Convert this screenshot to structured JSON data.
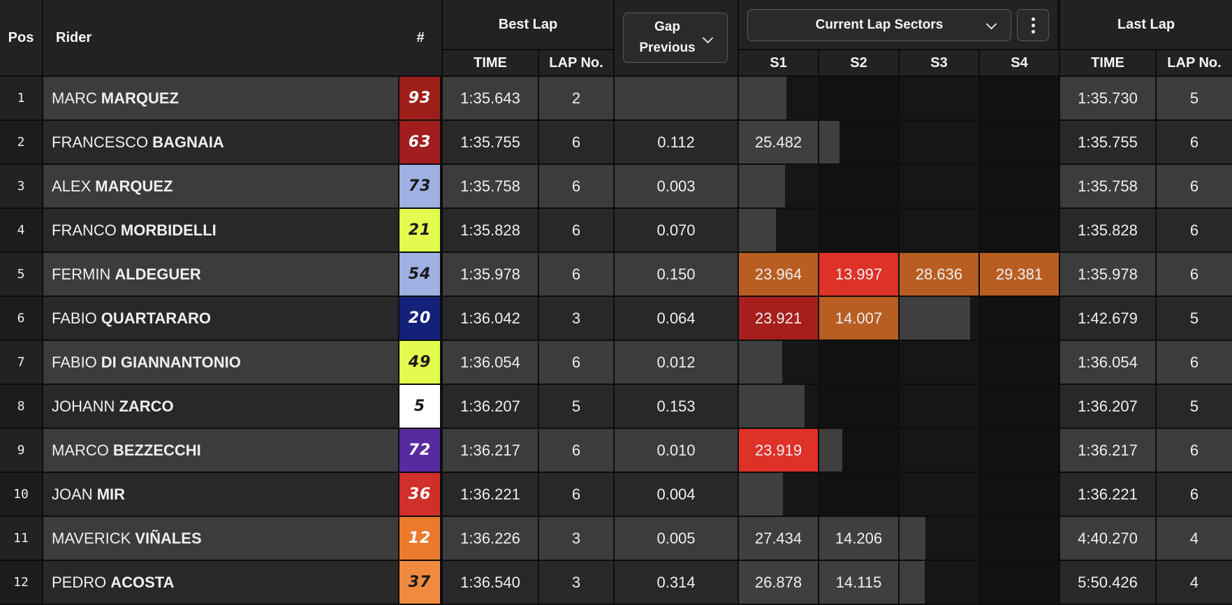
{
  "headers": {
    "pos": "Pos",
    "rider": "Rider",
    "number": "#",
    "best_lap": "Best Lap",
    "time": "TIME",
    "lap_no": "LAP No.",
    "gap_line1": "Gap",
    "gap_line2": "Previous",
    "sectors_select": "Current Lap Sectors",
    "s1": "S1",
    "s2": "S2",
    "s3": "S3",
    "s4": "S4",
    "last_lap": "Last Lap"
  },
  "colors": {
    "sector_orange": "#b85e22",
    "sector_red": "#de3127",
    "sector_darkred": "#a71f1c"
  },
  "rows": [
    {
      "pos": "1",
      "first": "MARC",
      "last": "MARQUEZ",
      "number": "93",
      "num_bg": "#9e1f1a",
      "num_fg": "#ffffff",
      "best_time": "1:35.643",
      "best_lap_no": "2",
      "gap": "",
      "sectors": [
        {
          "value": "",
          "color": "",
          "progress": 0.6
        },
        {
          "value": "",
          "color": "",
          "progress": 0
        },
        {
          "value": "",
          "color": "",
          "progress": 0
        },
        {
          "value": "",
          "color": "",
          "progress": 0
        }
      ],
      "last_time": "1:35.730",
      "last_lap_no": "5"
    },
    {
      "pos": "2",
      "first": "FRANCESCO",
      "last": "BAGNAIA",
      "number": "63",
      "num_bg": "#a11d1d",
      "num_fg": "#ffffff",
      "best_time": "1:35.755",
      "best_lap_no": "6",
      "gap": "0.112",
      "sectors": [
        {
          "value": "25.482",
          "color": "",
          "progress": 1
        },
        {
          "value": "",
          "color": "",
          "progress": 0.26
        },
        {
          "value": "",
          "color": "",
          "progress": 0
        },
        {
          "value": "",
          "color": "",
          "progress": 0
        }
      ],
      "last_time": "1:35.755",
      "last_lap_no": "6"
    },
    {
      "pos": "3",
      "first": "ALEX",
      "last": "MARQUEZ",
      "number": "73",
      "num_bg": "#9fb0e3",
      "num_fg": "#1a1a1a",
      "best_time": "1:35.758",
      "best_lap_no": "6",
      "gap": "0.003",
      "sectors": [
        {
          "value": "",
          "color": "",
          "progress": 0.58
        },
        {
          "value": "",
          "color": "",
          "progress": 0
        },
        {
          "value": "",
          "color": "",
          "progress": 0
        },
        {
          "value": "",
          "color": "",
          "progress": 0
        }
      ],
      "last_time": "1:35.758",
      "last_lap_no": "6"
    },
    {
      "pos": "4",
      "first": "FRANCO",
      "last": "MORBIDELLI",
      "number": "21",
      "num_bg": "#e3fa4f",
      "num_fg": "#1a1a1a",
      "best_time": "1:35.828",
      "best_lap_no": "6",
      "gap": "0.070",
      "sectors": [
        {
          "value": "",
          "color": "",
          "progress": 0.47
        },
        {
          "value": "",
          "color": "",
          "progress": 0
        },
        {
          "value": "",
          "color": "",
          "progress": 0
        },
        {
          "value": "",
          "color": "",
          "progress": 0
        }
      ],
      "last_time": "1:35.828",
      "last_lap_no": "6"
    },
    {
      "pos": "5",
      "first": "FERMIN",
      "last": "ALDEGUER",
      "number": "54",
      "num_bg": "#9fb0e3",
      "num_fg": "#1a1a1a",
      "best_time": "1:35.978",
      "best_lap_no": "6",
      "gap": "0.150",
      "sectors": [
        {
          "value": "23.964",
          "color": "#b85e22",
          "progress": 1
        },
        {
          "value": "13.997",
          "color": "#de3127",
          "progress": 1
        },
        {
          "value": "28.636",
          "color": "#b85e22",
          "progress": 1
        },
        {
          "value": "29.381",
          "color": "#b85e22",
          "progress": 1
        }
      ],
      "last_time": "1:35.978",
      "last_lap_no": "6"
    },
    {
      "pos": "6",
      "first": "FABIO",
      "last": "QUARTARARO",
      "number": "20",
      "num_bg": "#14217a",
      "num_fg": "#ffffff",
      "best_time": "1:36.042",
      "best_lap_no": "3",
      "gap": "0.064",
      "sectors": [
        {
          "value": "23.921",
          "color": "#a71f1c",
          "progress": 1
        },
        {
          "value": "14.007",
          "color": "#b85e22",
          "progress": 1
        },
        {
          "value": "",
          "color": "",
          "progress": 0.89
        },
        {
          "value": "",
          "color": "",
          "progress": 0
        }
      ],
      "last_time": "1:42.679",
      "last_lap_no": "5"
    },
    {
      "pos": "7",
      "first": "FABIO",
      "last": "DI GIANNANTONIO",
      "number": "49",
      "num_bg": "#e3fa4f",
      "num_fg": "#1a1a1a",
      "best_time": "1:36.054",
      "best_lap_no": "6",
      "gap": "0.012",
      "sectors": [
        {
          "value": "",
          "color": "",
          "progress": 0.55
        },
        {
          "value": "",
          "color": "",
          "progress": 0
        },
        {
          "value": "",
          "color": "",
          "progress": 0
        },
        {
          "value": "",
          "color": "",
          "progress": 0
        }
      ],
      "last_time": "1:36.054",
      "last_lap_no": "6"
    },
    {
      "pos": "8",
      "first": "JOHANN",
      "last": "ZARCO",
      "number": "5",
      "num_bg": "#ffffff",
      "num_fg": "#1a1a1a",
      "best_time": "1:36.207",
      "best_lap_no": "5",
      "gap": "0.153",
      "sectors": [
        {
          "value": "",
          "color": "",
          "progress": 0.83
        },
        {
          "value": "",
          "color": "",
          "progress": 0
        },
        {
          "value": "",
          "color": "",
          "progress": 0
        },
        {
          "value": "",
          "color": "",
          "progress": 0
        }
      ],
      "last_time": "1:36.207",
      "last_lap_no": "5"
    },
    {
      "pos": "9",
      "first": "MARCO",
      "last": "BEZZECCHI",
      "number": "72",
      "num_bg": "#582aa0",
      "num_fg": "#ffffff",
      "best_time": "1:36.217",
      "best_lap_no": "6",
      "gap": "0.010",
      "sectors": [
        {
          "value": "23.919",
          "color": "#de3127",
          "progress": 1
        },
        {
          "value": "",
          "color": "",
          "progress": 0.29
        },
        {
          "value": "",
          "color": "",
          "progress": 0
        },
        {
          "value": "",
          "color": "",
          "progress": 0
        }
      ],
      "last_time": "1:36.217",
      "last_lap_no": "6"
    },
    {
      "pos": "10",
      "first": "JOAN",
      "last": "MIR",
      "number": "36",
      "num_bg": "#d02f2a",
      "num_fg": "#ffffff",
      "best_time": "1:36.221",
      "best_lap_no": "6",
      "gap": "0.004",
      "sectors": [
        {
          "value": "",
          "color": "",
          "progress": 0.56
        },
        {
          "value": "",
          "color": "",
          "progress": 0
        },
        {
          "value": "",
          "color": "",
          "progress": 0
        },
        {
          "value": "",
          "color": "",
          "progress": 0
        }
      ],
      "last_time": "1:36.221",
      "last_lap_no": "6"
    },
    {
      "pos": "11",
      "first": "MAVERICK",
      "last": "VIÑALES",
      "number": "12",
      "num_bg": "#ec7a2c",
      "num_fg": "#ffffff",
      "best_time": "1:36.226",
      "best_lap_no": "3",
      "gap": "0.005",
      "sectors": [
        {
          "value": "27.434",
          "color": "",
          "progress": 1
        },
        {
          "value": "14.206",
          "color": "",
          "progress": 1
        },
        {
          "value": "",
          "color": "",
          "progress": 0.33
        },
        {
          "value": "",
          "color": "",
          "progress": 0
        }
      ],
      "last_time": "4:40.270",
      "last_lap_no": "4"
    },
    {
      "pos": "12",
      "first": "PEDRO",
      "last": "ACOSTA",
      "number": "37",
      "num_bg": "#f08a3e",
      "num_fg": "#1a1a1a",
      "best_time": "1:36.540",
      "best_lap_no": "3",
      "gap": "0.314",
      "sectors": [
        {
          "value": "26.878",
          "color": "",
          "progress": 1
        },
        {
          "value": "14.115",
          "color": "",
          "progress": 1
        },
        {
          "value": "",
          "color": "",
          "progress": 0.32
        },
        {
          "value": "",
          "color": "",
          "progress": 0
        }
      ],
      "last_time": "5:50.426",
      "last_lap_no": "4"
    }
  ]
}
